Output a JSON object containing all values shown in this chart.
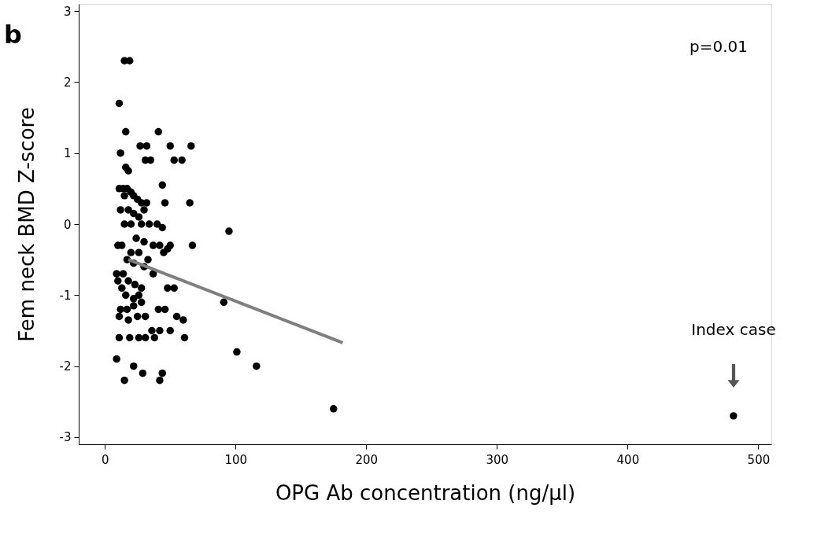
{
  "chart_data": {
    "type": "scatter",
    "xlabel": "OPG Ab concentration (ng/µl)",
    "ylabel": "Fem neck BMD Z-score",
    "xlim": [
      -20,
      510
    ],
    "ylim": [
      -3.1,
      3.1
    ],
    "xticks": [
      0,
      100,
      200,
      300,
      400,
      500
    ],
    "yticks": [
      -3,
      -2,
      -1,
      0,
      1,
      2,
      3
    ],
    "grid": false,
    "marker": "circle",
    "annotations": [
      "b",
      "p=0.01",
      "Index case"
    ],
    "series": [
      {
        "color": "#000000",
        "x": [
          15,
          19,
          11,
          16,
          41,
          12,
          27,
          32,
          50,
          66,
          31,
          35,
          53,
          59,
          16,
          18,
          44,
          11,
          14,
          17,
          20,
          15,
          22,
          25,
          28,
          32,
          46,
          65,
          12,
          18,
          22,
          30,
          26,
          15,
          20,
          28,
          34,
          40,
          44,
          10,
          13,
          24,
          30,
          37,
          42,
          48,
          50,
          67,
          95,
          20,
          26,
          33,
          45,
          17,
          22,
          30,
          14,
          37,
          9,
          10,
          18,
          23,
          28,
          13,
          16,
          26,
          22,
          48,
          53,
          12,
          17,
          22,
          28,
          41,
          46,
          55,
          60,
          11,
          18,
          25,
          31,
          36,
          42,
          50,
          91,
          11,
          19,
          26,
          31,
          38,
          61,
          101,
          116,
          9,
          22,
          29,
          44,
          15,
          42,
          175,
          481
        ],
        "values": [
          2.3,
          2.3,
          1.7,
          1.3,
          1.3,
          1.0,
          1.1,
          1.1,
          1.1,
          1.1,
          0.9,
          0.9,
          0.9,
          0.9,
          0.8,
          0.75,
          0.55,
          0.5,
          0.5,
          0.5,
          0.45,
          0.4,
          0.4,
          0.35,
          0.3,
          0.3,
          0.3,
          0.3,
          0.2,
          0.2,
          0.15,
          0.2,
          0.1,
          0.0,
          0.0,
          0.0,
          0.0,
          0.0,
          -0.05,
          -0.3,
          -0.3,
          -0.2,
          -0.25,
          -0.3,
          -0.3,
          -0.35,
          -0.3,
          -0.3,
          -0.1,
          -0.4,
          -0.4,
          -0.5,
          -0.4,
          -0.5,
          -0.55,
          -0.6,
          -0.7,
          -0.7,
          -0.7,
          -0.8,
          -0.8,
          -0.85,
          -0.9,
          -0.9,
          -1.0,
          -1.0,
          -1.05,
          -0.9,
          -0.9,
          -1.2,
          -1.2,
          -1.15,
          -1.1,
          -1.2,
          -1.2,
          -1.3,
          -1.35,
          -1.3,
          -1.35,
          -1.3,
          -1.3,
          -1.5,
          -1.5,
          -1.5,
          -1.1,
          -1.6,
          -1.6,
          -1.6,
          -1.6,
          -1.6,
          -1.6,
          -1.8,
          -2.0,
          -1.9,
          -2.0,
          -2.1,
          -2.1,
          -2.2,
          -2.2,
          -2.6,
          -2.7
        ]
      },
      {
        "type": "line",
        "line_style": "solid",
        "marker": "none",
        "color": "#7f7f7f",
        "x": [
          18,
          182
        ],
        "values": [
          -0.5,
          -1.67
        ]
      }
    ]
  }
}
